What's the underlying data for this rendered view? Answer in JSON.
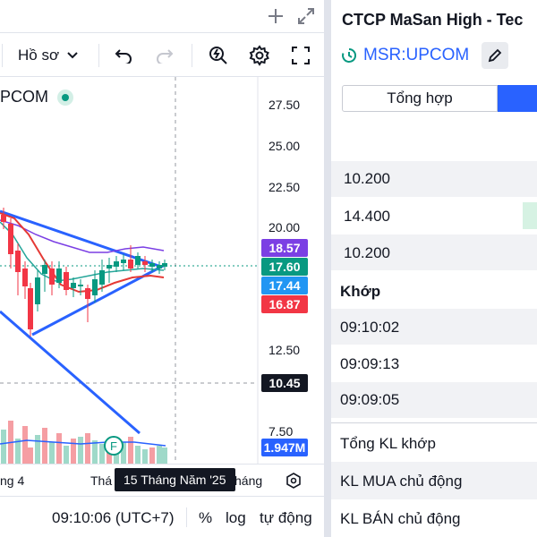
{
  "chart": {
    "profile_label": "Hồ sơ",
    "symbol_fragment": "PCOM",
    "price_ticks": [
      "27.50",
      "25.00",
      "22.50",
      "20.00",
      "12.50",
      "7.50"
    ],
    "price_tags": [
      {
        "label": "18.57",
        "color": "#7b3fe4"
      },
      {
        "label": "17.60",
        "color": "#089981"
      },
      {
        "label": "17.44",
        "color": "#2196f3"
      },
      {
        "label": "16.87",
        "color": "#f23645"
      },
      {
        "label": "10.45",
        "color": "#131722"
      },
      {
        "label": "1.947M",
        "color": "#2962ff"
      }
    ],
    "time_labels": [
      "ng 4",
      "Thá",
      "háng"
    ],
    "crosshair_time": "15 Tháng Năm '25",
    "marker_label": "F",
    "colors": {
      "up": "#089981",
      "down": "#f23645",
      "ma_red": "#e53935",
      "ma_teal": "#26a69a",
      "ma_purple": "#7b3fe4",
      "trendline": "#2962ff",
      "vol_up": "#9fd9c9",
      "vol_down": "#f59ea3"
    }
  },
  "bottom_bar": {
    "clock": "09:10:06 (UTC+7)",
    "percent": "%",
    "log": "log",
    "auto": "tự động"
  },
  "panel": {
    "company": "CTCP MaSan High - Tec",
    "ticker": "MSR:UPCOM",
    "tab_summary": "Tổng hợp",
    "prices": [
      "10.200",
      "14.400",
      "10.200"
    ],
    "matched_header": "Khớp",
    "times": [
      "09:10:02",
      "09:09:13",
      "09:09:05"
    ],
    "stats": [
      "Tổng KL khớp",
      "KL MUA chủ động",
      "KL BÁN chủ động"
    ]
  }
}
